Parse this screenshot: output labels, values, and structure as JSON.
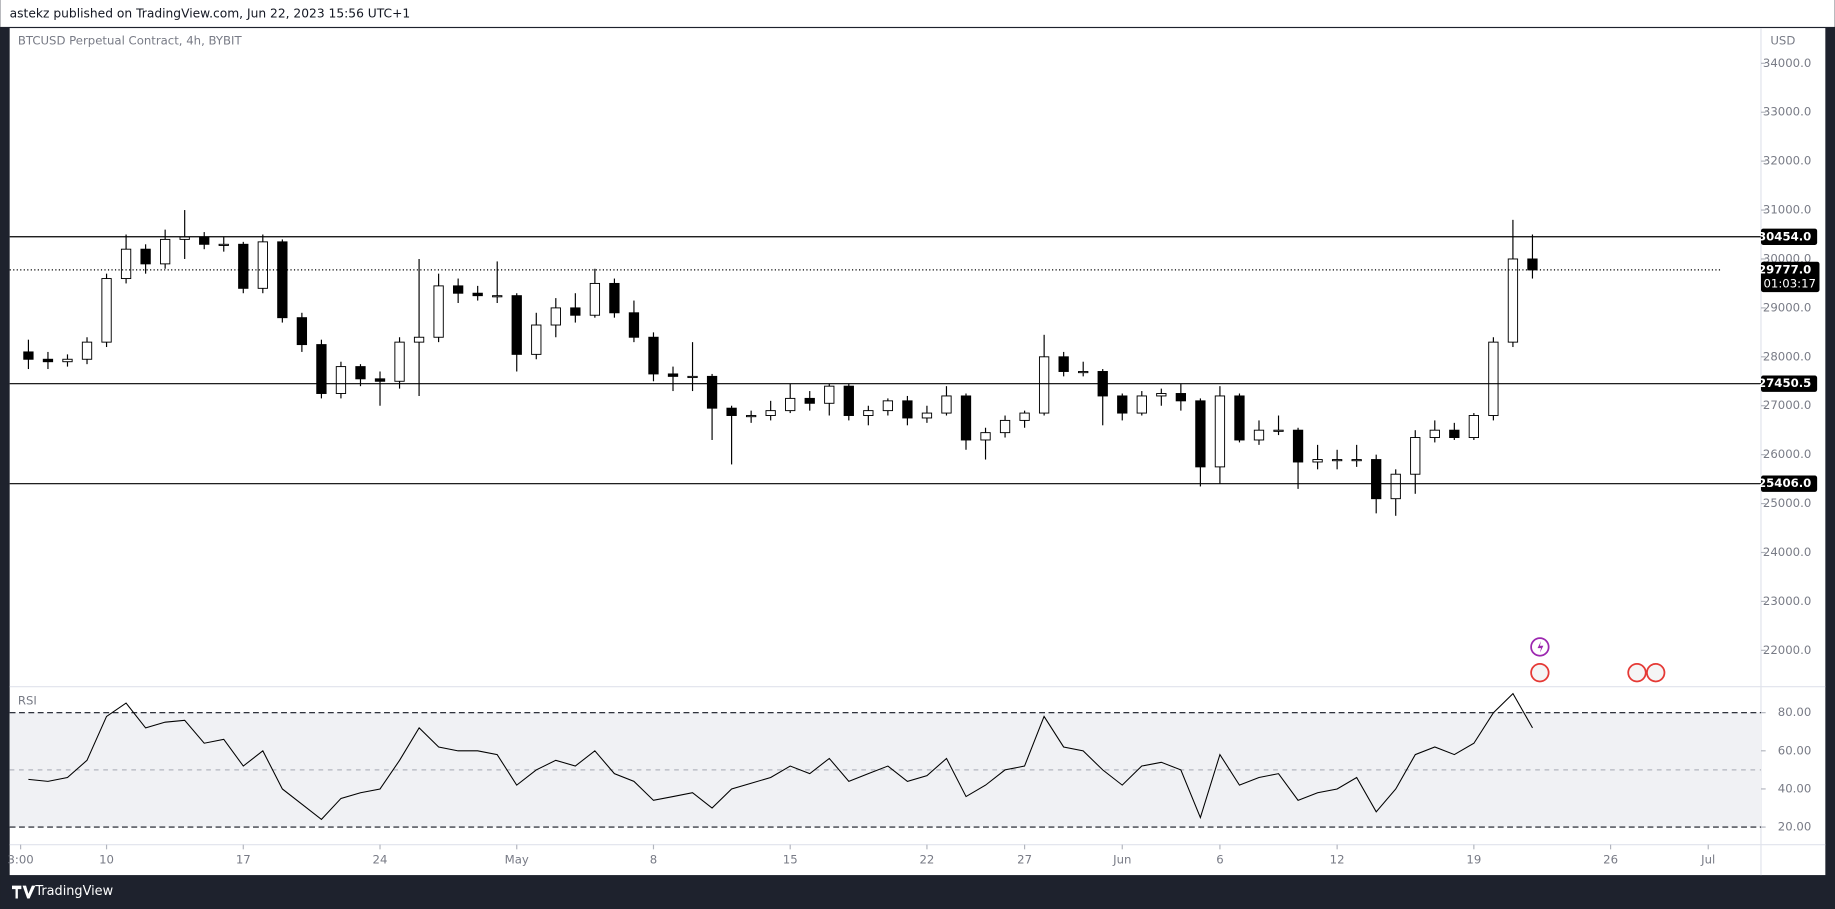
{
  "header": "astekz published on TradingView.com, Jun 22, 2023 15:56 UTC+1",
  "footer": "TradingView",
  "chart_data": [
    {
      "type": "candlestick",
      "title": "BTCUSD Perpetual Contract, 4h, BYBIT",
      "currency": "USD",
      "up_color": "#ffffff",
      "down_color": "#000000",
      "line_color": "#000000",
      "open": [
        28100,
        27950,
        27900,
        27950,
        28300,
        29600,
        30200,
        29900,
        30400,
        30450,
        30300,
        30300,
        29400,
        30350,
        28800,
        28250,
        27250,
        27800,
        27550,
        27500,
        28300,
        28400,
        29450,
        29300,
        29250,
        29250,
        28050,
        28650,
        29000,
        28850,
        29500,
        28900,
        28400,
        27650,
        27600,
        27600,
        26950,
        26800,
        26800,
        26900,
        27150,
        27050,
        27400,
        26800,
        26900,
        27100,
        26750,
        26850,
        27200,
        26300,
        26450,
        26700,
        26850,
        28000,
        27700,
        27700,
        27200,
        26850,
        27200,
        27250,
        27100,
        25750,
        27200,
        26300,
        26500,
        26500,
        25850,
        25900,
        25900,
        25900,
        25100,
        25600,
        26350,
        26500,
        26350,
        26800,
        28300,
        30000
      ],
      "high": [
        28350,
        28100,
        28050,
        28400,
        29700,
        30500,
        30300,
        30600,
        31000,
        30550,
        30450,
        30350,
        30500,
        30400,
        28900,
        28350,
        27900,
        27850,
        27700,
        28400,
        30000,
        29700,
        29600,
        29450,
        29950,
        29300,
        28900,
        29200,
        29300,
        29800,
        29600,
        29150,
        28500,
        27800,
        28300,
        27650,
        27000,
        26900,
        27100,
        27450,
        27300,
        27450,
        27450,
        27000,
        27150,
        27200,
        27000,
        27400,
        27250,
        26550,
        26800,
        26900,
        28450,
        28100,
        27900,
        27750,
        27250,
        27300,
        27350,
        27450,
        27150,
        27400,
        27250,
        26700,
        26800,
        26550,
        26200,
        26100,
        26200,
        26000,
        25700,
        26500,
        26700,
        26650,
        26850,
        28400,
        30800,
        30500
      ],
      "low": [
        27750,
        27750,
        27800,
        27850,
        28200,
        29500,
        29700,
        29800,
        30000,
        30200,
        30150,
        29300,
        29300,
        28700,
        28100,
        27150,
        27150,
        27400,
        27000,
        27350,
        27200,
        28300,
        29100,
        29150,
        29100,
        27700,
        27950,
        28400,
        28700,
        28800,
        28800,
        28300,
        27500,
        27300,
        27300,
        26300,
        25800,
        26650,
        26700,
        26850,
        26900,
        26800,
        26700,
        26600,
        26800,
        26600,
        26650,
        26800,
        26100,
        25900,
        26350,
        26550,
        26800,
        27600,
        27600,
        26600,
        26700,
        26800,
        27000,
        26900,
        25350,
        25400,
        26250,
        26200,
        26400,
        25300,
        25700,
        25700,
        25750,
        24800,
        24750,
        25200,
        26250,
        26300,
        26300,
        26700,
        28200,
        29600
      ],
      "close": [
        27950,
        27900,
        27950,
        28300,
        29600,
        30200,
        29900,
        30400,
        30450,
        30300,
        30300,
        29400,
        30350,
        28800,
        28250,
        27250,
        27800,
        27550,
        27500,
        28300,
        28400,
        29450,
        29300,
        29250,
        29250,
        28050,
        28650,
        29000,
        28850,
        29500,
        28900,
        28400,
        27650,
        27600,
        27600,
        26950,
        26800,
        26800,
        26900,
        27150,
        27050,
        27400,
        26800,
        26900,
        27100,
        26750,
        26850,
        27200,
        26300,
        26450,
        26700,
        26850,
        28000,
        27700,
        27700,
        27200,
        26850,
        27200,
        27250,
        27100,
        25750,
        27200,
        26300,
        26500,
        26500,
        25850,
        25900,
        25900,
        25900,
        25100,
        25600,
        26350,
        26500,
        26350,
        26800,
        28300,
        30000,
        29777
      ],
      "xlim": [
        -0.96,
        88.7
      ],
      "xticks": [
        {
          "value": -0.4,
          "label": "3:00"
        },
        {
          "value": 4,
          "label": "10"
        },
        {
          "value": 11,
          "label": "17"
        },
        {
          "value": 18,
          "label": "24"
        },
        {
          "value": 25,
          "label": "May"
        },
        {
          "value": 32,
          "label": "8"
        },
        {
          "value": 39,
          "label": "15"
        },
        {
          "value": 46,
          "label": "22"
        },
        {
          "value": 51,
          "label": "27"
        },
        {
          "value": 56,
          "label": "Jun"
        },
        {
          "value": 61,
          "label": "6"
        },
        {
          "value": 67,
          "label": "12"
        },
        {
          "value": 74,
          "label": "19"
        },
        {
          "value": 81,
          "label": "26"
        },
        {
          "value": 86,
          "label": "Jul"
        }
      ],
      "ylim": [
        21280,
        34720
      ],
      "yticks": [
        {
          "value": 22000,
          "label": "22000.0"
        },
        {
          "value": 23000,
          "label": "23000.0"
        },
        {
          "value": 24000,
          "label": "24000.0"
        },
        {
          "value": 25000,
          "label": "25000.0"
        },
        {
          "value": 26000,
          "label": "26000.0"
        },
        {
          "value": 27000,
          "label": "27000.0"
        },
        {
          "value": 28000,
          "label": "28000.0"
        },
        {
          "value": 29000,
          "label": "29000.0"
        },
        {
          "value": 30000,
          "label": "30000.0"
        },
        {
          "value": 31000,
          "label": "31000.0"
        },
        {
          "value": 32000,
          "label": "32000.0"
        },
        {
          "value": 33000,
          "label": "33000.0"
        },
        {
          "value": 34000,
          "label": "34000.0"
        }
      ],
      "levels": [
        {
          "value": 30454.0,
          "label": "30454.0"
        },
        {
          "value": 27450.5,
          "label": "27450.5"
        },
        {
          "value": 25406.0,
          "label": "25406.0"
        }
      ],
      "last_price": {
        "value": 29777.0,
        "label": "29777.0"
      },
      "countdown": "01:03:17"
    },
    {
      "type": "line",
      "title": "RSI",
      "color": "#000000",
      "values": [
        45,
        44,
        46,
        55,
        78,
        85,
        72,
        75,
        76,
        64,
        66,
        52,
        60,
        40,
        32,
        24,
        35,
        38,
        40,
        55,
        72,
        62,
        60,
        60,
        58,
        42,
        50,
        55,
        52,
        60,
        48,
        44,
        34,
        36,
        38,
        30,
        40,
        43,
        46,
        52,
        48,
        56,
        44,
        48,
        52,
        44,
        47,
        56,
        36,
        42,
        50,
        52,
        78,
        62,
        60,
        50,
        42,
        52,
        54,
        50,
        25,
        58,
        42,
        46,
        48,
        34,
        38,
        40,
        46,
        28,
        40,
        58,
        62,
        58,
        64,
        80,
        90,
        72
      ],
      "ylim": [
        12,
        93
      ],
      "yticks": [
        {
          "value": 20,
          "label": "20.00"
        },
        {
          "value": 40,
          "label": "40.00"
        },
        {
          "value": 60,
          "label": "60.00"
        },
        {
          "value": 80,
          "label": "80.00"
        }
      ],
      "levels": [
        80,
        50,
        20
      ]
    }
  ]
}
